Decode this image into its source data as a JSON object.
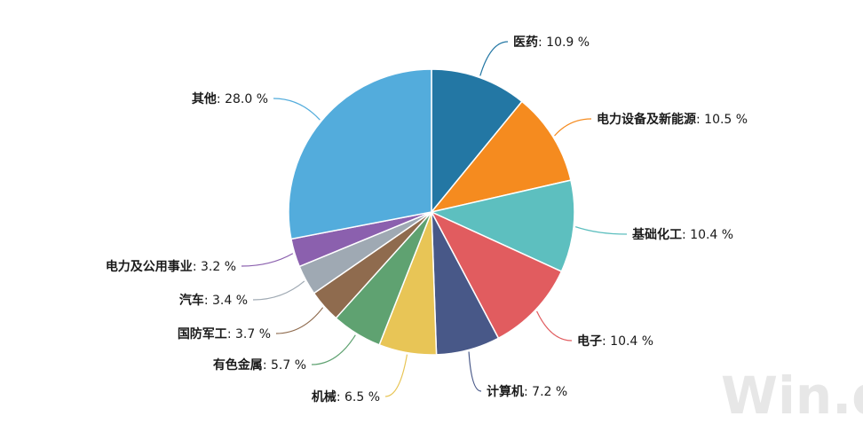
{
  "chart_data": {
    "type": "pie",
    "title": "",
    "unit": "%",
    "slices": [
      {
        "name": "医药",
        "value": 10.9,
        "color": "#2377a4"
      },
      {
        "name": "电力设备及新能源",
        "value": 10.5,
        "color": "#f58b1f"
      },
      {
        "name": "基础化工",
        "value": 10.4,
        "color": "#5dbfbf"
      },
      {
        "name": "电子",
        "value": 10.4,
        "color": "#e15c5f"
      },
      {
        "name": "计算机",
        "value": 7.2,
        "color": "#485888"
      },
      {
        "name": "机械",
        "value": 6.5,
        "color": "#e8c556"
      },
      {
        "name": "有色金属",
        "value": 5.7,
        "color": "#5fa271"
      },
      {
        "name": "国防军工",
        "value": 3.7,
        "color": "#8f6b4e"
      },
      {
        "name": "汽车",
        "value": 3.4,
        "color": "#9fa9b3"
      },
      {
        "name": "电力及公用事业",
        "value": 3.2,
        "color": "#8b60ae"
      },
      {
        "name": "其他",
        "value": 28.0,
        "color": "#53acdc"
      }
    ]
  },
  "watermark": "Win.d"
}
